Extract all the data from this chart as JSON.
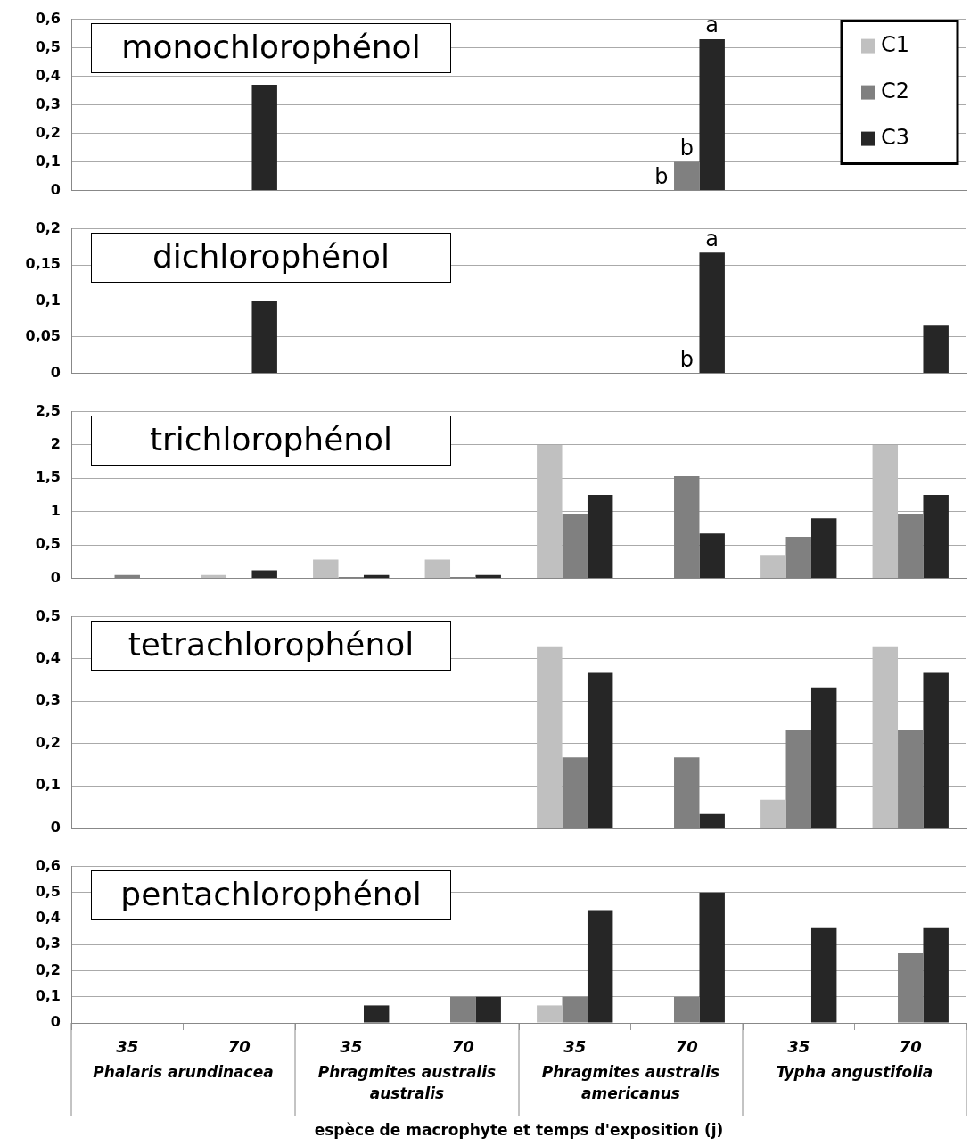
{
  "chart_data": [
    {
      "type": "bar",
      "title": "monochlorophénol",
      "categories": [
        "35",
        "70",
        "35",
        "70",
        "35",
        "70",
        "35",
        "70"
      ],
      "series": [
        {
          "name": "C1",
          "color": "#c0c0c0",
          "values": [
            0,
            0,
            0,
            0,
            0,
            0,
            0,
            0
          ]
        },
        {
          "name": "C2",
          "color": "#808080",
          "values": [
            0,
            0,
            0,
            0,
            0,
            0.1,
            0,
            0
          ]
        },
        {
          "name": "C3",
          "color": "#262626",
          "values": [
            0,
            0.37,
            0,
            0,
            0,
            0.53,
            0,
            0
          ]
        }
      ],
      "ylim": [
        0,
        0.6
      ],
      "yticks": [
        0,
        {
          "value": 0.1,
          "label": "0,1"
        },
        {
          "value": 0.2,
          "label": "0,2"
        },
        {
          "value": 0.3,
          "label": "0,3"
        },
        {
          "value": 0.4,
          "label": "0,4"
        },
        {
          "value": 0.5,
          "label": "0,5"
        },
        {
          "value": 0.6,
          "label": "0,6"
        }
      ],
      "grid": "y",
      "legend": "top right",
      "tick_labels": "y",
      "annotations": [
        "a",
        "b",
        "b"
      ]
    },
    {
      "type": "bar",
      "title": "dichlorophénol",
      "categories": [
        "35",
        "70",
        "35",
        "70",
        "35",
        "70",
        "35",
        "70"
      ],
      "series": [
        {
          "color": "#c0c0c0",
          "values": [
            0,
            0,
            0,
            0,
            0,
            0,
            0,
            0
          ]
        },
        {
          "color": "#808080",
          "values": [
            0,
            0,
            0,
            0,
            0,
            0,
            0,
            0
          ]
        },
        {
          "color": "#262626",
          "values": [
            0,
            0.1,
            0,
            0,
            0,
            0.167,
            0,
            0.067
          ]
        }
      ],
      "ylim": [
        0,
        0.2
      ],
      "yticks": [
        0,
        {
          "value": 0.05,
          "label": "0,05"
        },
        {
          "value": 0.1,
          "label": "0,1"
        },
        {
          "value": 0.15,
          "label": "0,15"
        },
        {
          "value": 0.2,
          "label": "0,2"
        }
      ],
      "grid": "y",
      "tick_labels": "y",
      "annotations": [
        "a",
        "b"
      ]
    },
    {
      "type": "bar",
      "title": "trichlorophénol",
      "categories": [
        "35",
        "70",
        "35",
        "70",
        "35",
        "70",
        "35",
        "70"
      ],
      "series": [
        {
          "color": "#c0c0c0",
          "values": [
            0,
            0.05,
            0.28,
            0.28,
            2,
            0,
            0.35,
            2
          ]
        },
        {
          "color": "#808080",
          "values": [
            0.05,
            0,
            0.02,
            0.02,
            0.97,
            1.53,
            0.62,
            0.97
          ]
        },
        {
          "color": "#262626",
          "values": [
            0,
            0.12,
            0.05,
            0.05,
            1.25,
            0.67,
            0.9,
            1.25
          ]
        }
      ],
      "ylim": [
        0,
        2.5
      ],
      "yticks": [
        0,
        {
          "value": 0.5,
          "label": "0,5"
        },
        1,
        {
          "value": 1.5,
          "label": "1,5"
        },
        2,
        {
          "value": 2.5,
          "label": "2,5"
        }
      ],
      "grid": "y",
      "tick_labels": "y"
    },
    {
      "type": "bar",
      "title": "tetrachlorophénol",
      "categories": [
        "35",
        "70",
        "35",
        "70",
        "35",
        "70",
        "35",
        "70"
      ],
      "series": [
        {
          "color": "#c0c0c0",
          "values": [
            0,
            0,
            0,
            0,
            0.43,
            0,
            0.067,
            0.43
          ]
        },
        {
          "color": "#808080",
          "values": [
            0,
            0,
            0,
            0,
            0.167,
            0.167,
            0.233,
            0.233
          ]
        },
        {
          "color": "#262626",
          "values": [
            0,
            0,
            0,
            0,
            0.367,
            0.033,
            0.333,
            0.367
          ]
        }
      ],
      "ylim": [
        0,
        0.5
      ],
      "yticks": [
        0,
        {
          "value": 0.1,
          "label": "0,1"
        },
        {
          "value": 0.2,
          "label": "0,2"
        },
        {
          "value": 0.3,
          "label": "0,3"
        },
        {
          "value": 0.4,
          "label": "0,4"
        },
        {
          "value": 0.5,
          "label": "0,5"
        }
      ],
      "grid": "y",
      "tick_labels": "y"
    },
    {
      "type": "bar",
      "title": "pentachlorophénol",
      "categories": [
        "35",
        "70",
        "35",
        "70",
        "35",
        "70",
        "35",
        "70"
      ],
      "series": [
        {
          "color": "#c0c0c0",
          "values": [
            0,
            0,
            0,
            0,
            0.067,
            0,
            0,
            0
          ]
        },
        {
          "color": "#808080",
          "values": [
            0,
            0,
            0,
            0.1,
            0.1,
            0.1,
            0,
            0.267
          ]
        },
        {
          "color": "#262626",
          "values": [
            0,
            0,
            0.067,
            0.1,
            0.433,
            0.5,
            0.367,
            0.367
          ]
        }
      ],
      "ylim": [
        0,
        0.6
      ],
      "yticks": [
        0,
        {
          "value": 0.1,
          "label": "0,1"
        },
        {
          "value": 0.2,
          "label": "0,2"
        },
        {
          "value": 0.3,
          "label": "0,3"
        },
        {
          "value": 0.4,
          "label": "0,4"
        },
        {
          "value": 0.5,
          "label": "0,5"
        },
        {
          "value": 0.6,
          "label": "0,6"
        }
      ],
      "grid": "y",
      "xlabel": "espèce de macrophyte et temps d'exposition (j)",
      "annotations": [
        "Phalaris arundinacea",
        "Phragmites australis australis",
        "Phragmites australis americanus",
        "Typha angustifolia"
      ]
    }
  ]
}
